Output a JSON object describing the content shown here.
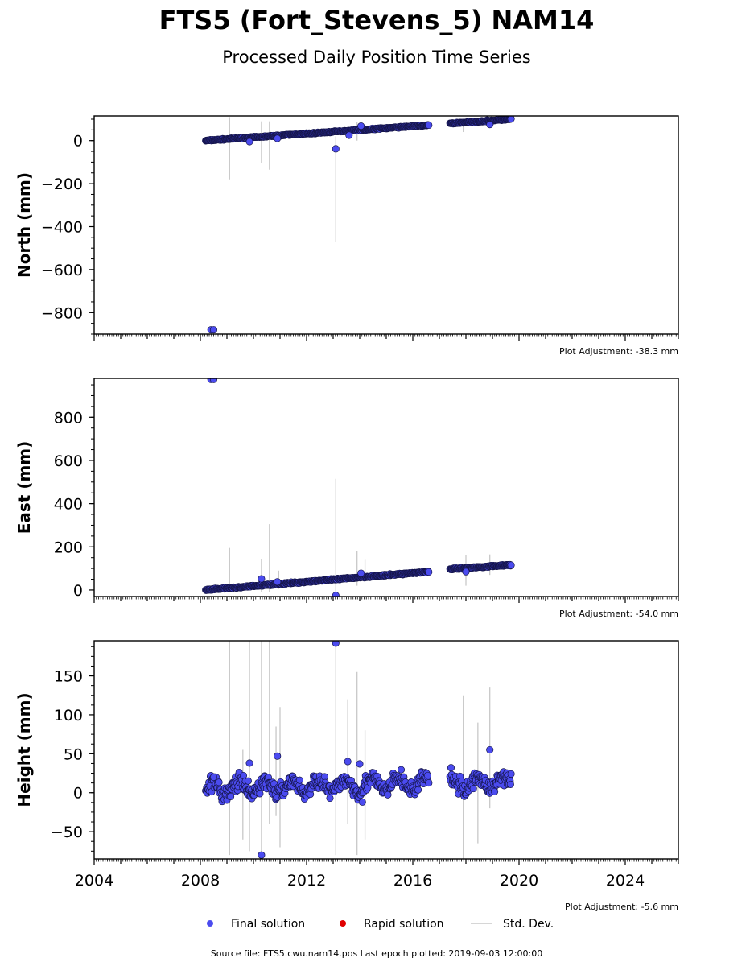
{
  "figure": {
    "title": "FTS5 (Fort_Stevens_5) NAM14",
    "subtitle": "Processed Daily Position Time Series",
    "source_note": "Source file: FTS5.cwu.nam14.pos  Last epoch plotted: 2019-09-03 12:00:00",
    "colors": {
      "final": "#4b4bef",
      "final_edge": "#15154a",
      "rapid": "#e00000",
      "stddev": "#c8c8c8"
    }
  },
  "legend": {
    "final": "Final solution",
    "rapid": "Rapid solution",
    "stddev": "Std. Dev."
  },
  "chart_data": [
    {
      "type": "scatter",
      "ylabel": "North (mm)",
      "adjustment": "Plot Adjustment: -38.3 mm",
      "xlim": [
        2004,
        2026
      ],
      "ylim": [
        -900,
        115
      ],
      "yticks": [
        0,
        -200,
        -400,
        -600,
        -800
      ],
      "ytick_labels": [
        "0",
        "−200",
        "−400",
        "−600",
        "−800"
      ],
      "series": [
        {
          "segments": [
            {
              "x_start": 2008.2,
              "x_end": 2016.6,
              "y_start": 0,
              "y_end": 72,
              "noise": 2.5
            },
            {
              "x_start": 2017.4,
              "x_end": 2019.7,
              "y_start": 80,
              "y_end": 100,
              "noise": 2.5
            }
          ],
          "outliers": [
            [
              2008.4,
              -880
            ],
            [
              2008.5,
              -880
            ],
            [
              2009.85,
              -5
            ],
            [
              2010.9,
              10
            ],
            [
              2013.1,
              -38
            ],
            [
              2013.6,
              25
            ],
            [
              2014.05,
              68
            ],
            [
              2018.9,
              75
            ]
          ],
          "error_bars": [
            [
              2009.1,
              -180,
              110
            ],
            [
              2010.3,
              -105,
              90
            ],
            [
              2010.6,
              -135,
              90
            ],
            [
              2013.1,
              -470,
              20
            ],
            [
              2013.9,
              0,
              85
            ],
            [
              2017.9,
              40,
              90
            ]
          ]
        }
      ]
    },
    {
      "type": "scatter",
      "ylabel": "East (mm)",
      "adjustment": "Plot Adjustment: -54.0 mm",
      "xlim": [
        2004,
        2026
      ],
      "ylim": [
        -30,
        980
      ],
      "yticks": [
        0,
        200,
        400,
        600,
        800
      ],
      "ytick_labels": [
        "0",
        "200",
        "400",
        "600",
        "800"
      ],
      "series": [
        {
          "segments": [
            {
              "x_start": 2008.2,
              "x_end": 2016.6,
              "y_start": 0,
              "y_end": 85,
              "noise": 3
            },
            {
              "x_start": 2017.4,
              "x_end": 2019.7,
              "y_start": 97,
              "y_end": 117,
              "noise": 3
            }
          ],
          "outliers": [
            [
              2008.4,
              975
            ],
            [
              2008.5,
              975
            ],
            [
              2010.3,
              52
            ],
            [
              2010.9,
              38
            ],
            [
              2013.1,
              -25
            ],
            [
              2014.05,
              78
            ],
            [
              2018.0,
              85
            ]
          ],
          "error_bars": [
            [
              2009.1,
              -10,
              195
            ],
            [
              2010.3,
              -10,
              145
            ],
            [
              2010.6,
              -10,
              305
            ],
            [
              2010.95,
              5,
              90
            ],
            [
              2013.1,
              -30,
              515
            ],
            [
              2013.9,
              20,
              180
            ],
            [
              2014.2,
              40,
              140
            ],
            [
              2018.0,
              20,
              160
            ],
            [
              2018.9,
              70,
              165
            ]
          ]
        }
      ]
    },
    {
      "type": "scatter",
      "ylabel": "Height (mm)",
      "adjustment": "Plot Adjustment: -5.6 mm",
      "xlim": [
        2004,
        2026
      ],
      "ylim": [
        -85,
        195
      ],
      "yticks": [
        -50,
        0,
        50,
        100,
        150
      ],
      "ytick_labels": [
        "−50",
        "0",
        "50",
        "100",
        "150"
      ],
      "xticks": [
        2004,
        2008,
        2012,
        2016,
        2020,
        2024
      ],
      "xtick_labels": [
        "2004",
        "2008",
        "2012",
        "2016",
        "2020",
        "2024"
      ],
      "series": [
        {
          "segments": [
            {
              "x_start": 2008.2,
              "x_end": 2016.6,
              "y_start": 5,
              "y_end": 12,
              "noise": 9,
              "seasonal_amp": 8
            },
            {
              "x_start": 2017.4,
              "x_end": 2019.7,
              "y_start": 10,
              "y_end": 15,
              "noise": 9,
              "seasonal_amp": 8
            }
          ],
          "outliers": [
            [
              2008.5,
              20
            ],
            [
              2009.85,
              38
            ],
            [
              2010.3,
              -80
            ],
            [
              2010.9,
              47
            ],
            [
              2013.1,
              192
            ],
            [
              2013.55,
              40
            ],
            [
              2014.0,
              37
            ],
            [
              2014.1,
              -12
            ],
            [
              2018.9,
              55
            ]
          ],
          "error_bars": [
            [
              2009.1,
              -80,
              195
            ],
            [
              2009.6,
              -60,
              55
            ],
            [
              2009.85,
              -75,
              195
            ],
            [
              2010.3,
              -80,
              195
            ],
            [
              2010.6,
              -40,
              195
            ],
            [
              2010.85,
              -30,
              85
            ],
            [
              2011.0,
              -70,
              110
            ],
            [
              2013.1,
              -80,
              195
            ],
            [
              2013.55,
              -40,
              120
            ],
            [
              2013.9,
              -80,
              155
            ],
            [
              2014.2,
              -60,
              80
            ],
            [
              2017.9,
              -85,
              125
            ],
            [
              2018.45,
              -65,
              90
            ],
            [
              2018.9,
              -20,
              135
            ]
          ]
        }
      ]
    }
  ]
}
